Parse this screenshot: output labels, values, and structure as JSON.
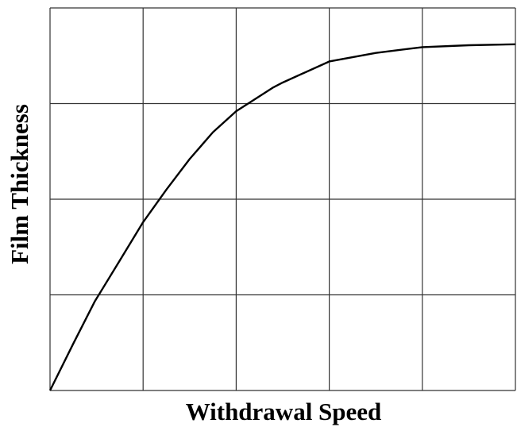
{
  "chart_data": {
    "type": "line",
    "x_label": "Withdrawal Speed",
    "y_label": "Film Thickness",
    "x": [
      0,
      0.25,
      0.48,
      0.75,
      1.0,
      1.25,
      1.5,
      1.75,
      2.0,
      2.4,
      2.5,
      3.0,
      3.5,
      4.0,
      4.5,
      5.0
    ],
    "series": [
      {
        "color": "#000000",
        "values": [
          0,
          0.49,
          0.93,
          1.36,
          1.76,
          2.1,
          2.42,
          2.7,
          2.92,
          3.17,
          3.22,
          3.44,
          3.53,
          3.59,
          3.61,
          3.62
        ]
      }
    ],
    "xlim": [
      0,
      5
    ],
    "ylim": [
      0,
      4
    ],
    "xticks": [
      0,
      1,
      2,
      3,
      4,
      5
    ],
    "yticks": [
      0,
      1,
      2,
      3,
      4
    ],
    "grid": true
  }
}
